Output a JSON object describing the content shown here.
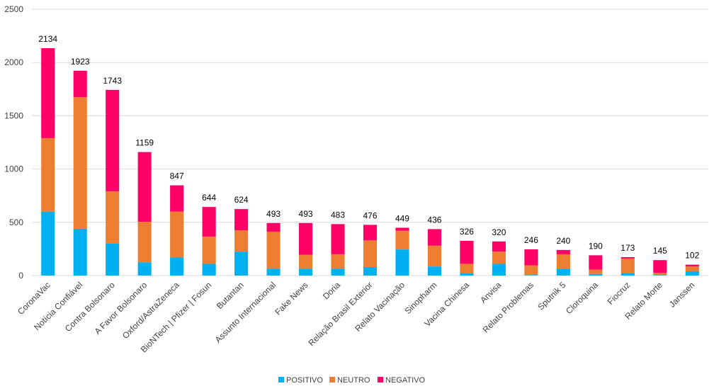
{
  "chart_data": {
    "type": "bar",
    "stacked": true,
    "categories": [
      "CoronaVac",
      "Notícia Confiável",
      "Contra Bolsonaro",
      "A Favor Bolsonaro",
      "Oxford/AstraZeneca",
      "BioNTech | Pfizer | Fosun",
      "Butantan",
      "Assunto Internacional",
      "Fake News",
      "Doria",
      "Relação Brasil Exterior",
      "Relato Vacinação",
      "Sinopharm",
      "Vacina Chinesa",
      "Anvisa",
      "Relato Problemas",
      "Sputnik 5",
      "Cloroquina",
      "Fiocruz",
      "Relato Morte",
      "Janssen"
    ],
    "series": [
      {
        "name": "POSITIVO",
        "color": "#00b0f0",
        "values": [
          600,
          440,
          300,
          125,
          170,
          110,
          225,
          65,
          65,
          65,
          80,
          245,
          85,
          20,
          110,
          5,
          60,
          15,
          20,
          5,
          40
        ]
      },
      {
        "name": "NEUTRO",
        "color": "#ed7d31",
        "values": [
          690,
          1235,
          490,
          380,
          430,
          255,
          200,
          345,
          130,
          135,
          250,
          175,
          195,
          90,
          115,
          90,
          140,
          40,
          140,
          20,
          45
        ]
      },
      {
        "name": "NEGATIVO",
        "color": "#ff0066",
        "values": [
          844,
          248,
          953,
          654,
          247,
          279,
          199,
          83,
          298,
          283,
          146,
          29,
          156,
          216,
          95,
          151,
          40,
          135,
          13,
          120,
          17
        ]
      }
    ],
    "totals": [
      2134,
      1923,
      1743,
      1159,
      847,
      644,
      624,
      493,
      493,
      483,
      476,
      449,
      436,
      326,
      320,
      246,
      240,
      190,
      173,
      145,
      102
    ],
    "ylim": [
      0,
      2500
    ],
    "yticks": [
      0,
      500,
      1000,
      1500,
      2000,
      2500
    ],
    "grid": true,
    "legend": "bottom",
    "title": "",
    "xlabel": "",
    "ylabel": ""
  }
}
